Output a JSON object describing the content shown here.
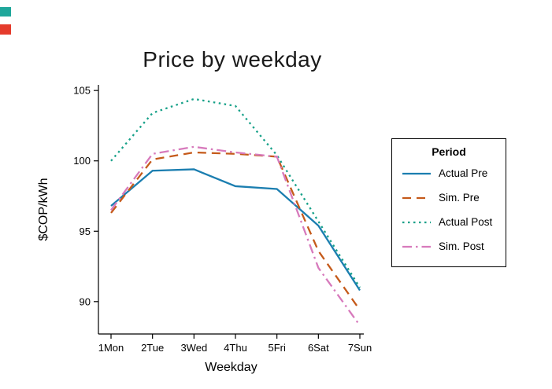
{
  "corner_markers": {
    "teal": "#1fa79b",
    "red": "#e53b2c"
  },
  "chart_data": {
    "type": "line",
    "title": "Price by weekday",
    "xlabel": "Weekday",
    "ylabel": "$COP/kWh",
    "legend_title": "Period",
    "legend_position": "right",
    "grid": false,
    "categories": [
      "1Mon",
      "2Tue",
      "3Wed",
      "4Thu",
      "5Fri",
      "6Sat",
      "7Sun"
    ],
    "yticks": [
      90,
      95,
      100,
      105
    ],
    "ylim": [
      87.7,
      105.4
    ],
    "series": [
      {
        "name": "Actual Pre",
        "style": "solid",
        "color": "#1b7eb0",
        "values": [
          96.8,
          99.3,
          99.4,
          98.2,
          98.0,
          95.4,
          90.8
        ]
      },
      {
        "name": "Sim. Pre",
        "style": "dashed",
        "color": "#c55a1a",
        "values": [
          96.3,
          100.1,
          100.6,
          100.5,
          100.3,
          93.6,
          89.4
        ]
      },
      {
        "name": "Actual Post",
        "style": "dotted",
        "color": "#17a189",
        "values": [
          100.0,
          103.4,
          104.4,
          103.9,
          100.4,
          95.7,
          91.0
        ]
      },
      {
        "name": "Sim. Post",
        "style": "dashdot",
        "color": "#d77abc",
        "values": [
          96.5,
          100.5,
          101.0,
          100.6,
          100.3,
          92.4,
          88.3
        ]
      }
    ]
  }
}
